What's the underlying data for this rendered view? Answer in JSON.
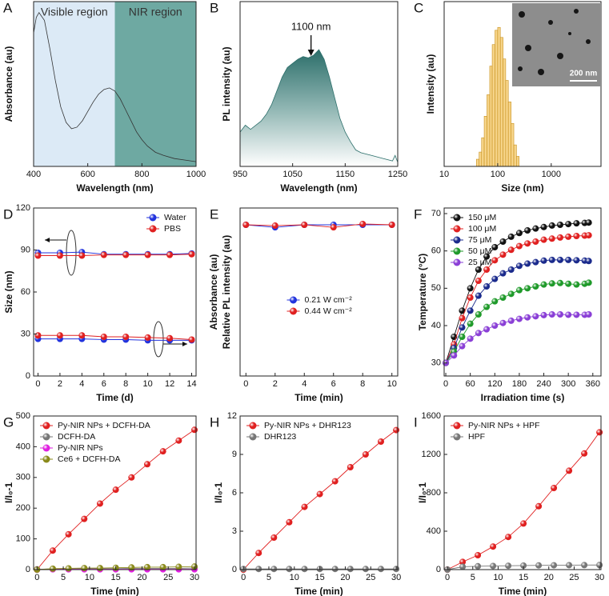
{
  "chart_data": [
    {
      "type": "line",
      "label": "A",
      "xlabel": "Wavelength (nm)",
      "ylabel": "Absorbance (au)",
      "xlim": [
        400,
        1000
      ],
      "ylim": [
        0,
        1.05
      ],
      "xticks": [
        400,
        600,
        800,
        1000
      ],
      "regions": [
        {
          "label": "Visible region",
          "from": 400,
          "to": 700,
          "color": "#dceaf6"
        },
        {
          "label": "NIR region",
          "from": 700,
          "to": 1000,
          "color": "#6ea9a2"
        }
      ],
      "x": [
        400,
        410,
        420,
        440,
        460,
        480,
        500,
        520,
        540,
        560,
        580,
        600,
        620,
        640,
        660,
        680,
        700,
        720,
        740,
        760,
        780,
        800,
        820,
        850,
        880,
        920,
        960,
        1000
      ],
      "series": [
        {
          "color": "#333333",
          "values": [
            0.85,
            0.95,
            0.98,
            0.93,
            0.75,
            0.55,
            0.38,
            0.28,
            0.24,
            0.25,
            0.29,
            0.35,
            0.41,
            0.46,
            0.49,
            0.5,
            0.48,
            0.43,
            0.36,
            0.29,
            0.22,
            0.17,
            0.13,
            0.09,
            0.07,
            0.05,
            0.04,
            0.03
          ]
        }
      ]
    },
    {
      "type": "area",
      "label": "B",
      "xlabel": "Wavelength (nm)",
      "ylabel": "PL intensity (au)",
      "xlim": [
        950,
        1250
      ],
      "ylim": [
        0,
        1.2
      ],
      "xticks": [
        950,
        1050,
        1150,
        1250
      ],
      "annotation": {
        "text": "1100 nm",
        "x": 1085
      },
      "x": [
        950,
        960,
        970,
        990,
        1000,
        1010,
        1020,
        1030,
        1040,
        1050,
        1060,
        1070,
        1080,
        1090,
        1100,
        1110,
        1120,
        1130,
        1140,
        1150,
        1160,
        1170,
        1180,
        1200,
        1220,
        1240,
        1245,
        1250
      ],
      "series": [
        {
          "color": "#2b6e6a",
          "values": [
            0.25,
            0.3,
            0.27,
            0.33,
            0.38,
            0.45,
            0.55,
            0.65,
            0.72,
            0.75,
            0.78,
            0.8,
            0.79,
            0.81,
            0.85,
            0.78,
            0.65,
            0.5,
            0.35,
            0.25,
            0.18,
            0.12,
            0.1,
            0.08,
            0.06,
            0.04,
            0.08,
            0.03
          ]
        }
      ]
    },
    {
      "type": "histogram",
      "label": "C",
      "xlabel": "Size (nm)",
      "ylabel": "Intensity (au)",
      "xscale": "log",
      "xlim": [
        10,
        8500
      ],
      "ylim": [
        0,
        1.15
      ],
      "xticks": [
        10,
        100,
        1000
      ],
      "color": "#f6d489",
      "inset": {
        "scale_label": "200 nm"
      },
      "bins": [
        40,
        45,
        50,
        56,
        63,
        71,
        79,
        89,
        100,
        112,
        126,
        141,
        158,
        178,
        200,
        224,
        251
      ],
      "values": [
        0.05,
        0.1,
        0.2,
        0.35,
        0.5,
        0.7,
        0.85,
        0.95,
        0.97,
        0.9,
        0.75,
        0.6,
        0.45,
        0.3,
        0.15,
        0.07
      ]
    },
    {
      "type": "line",
      "markers": true,
      "label": "D",
      "xlabel": "Time (d)",
      "ylabel": "Size (nm)",
      "xlim": [
        -0.4,
        14.4
      ],
      "ylim": [
        0,
        120
      ],
      "xticks": [
        0,
        2,
        4,
        6,
        8,
        10,
        12,
        14
      ],
      "yticks": [
        0,
        30,
        60,
        90,
        120
      ],
      "legend": "upper right",
      "x": [
        0,
        2,
        4,
        6,
        8,
        10,
        12,
        14
      ],
      "series": [
        {
          "name": "Water",
          "color": "#2233dd",
          "values": [
            88,
            88,
            88.5,
            87,
            87,
            87,
            87,
            87.5
          ],
          "values_lower": [
            26.5,
            26.5,
            26.5,
            26,
            26,
            25.5,
            25.5,
            25.5
          ]
        },
        {
          "name": "PBS",
          "color": "#e02020",
          "values": [
            86,
            86,
            86,
            86.5,
            86.5,
            86.5,
            86.5,
            87
          ],
          "values_lower": [
            29,
            29,
            29,
            28,
            28,
            27.5,
            27,
            26
          ]
        }
      ]
    },
    {
      "type": "line",
      "markers": true,
      "label": "E",
      "xlabel": "Time (min)",
      "ylabel": [
        "Absorbance (au)",
        "Relative PL intensity (au)"
      ],
      "xlim": [
        -0.4,
        10.4
      ],
      "ylim": [
        0,
        1
      ],
      "xticks": [
        0,
        2,
        4,
        6,
        8,
        10
      ],
      "legend": "center",
      "x": [
        0,
        2,
        4,
        6,
        8,
        10
      ],
      "series": [
        {
          "name": "0.21 W cm⁻²",
          "color": "#2233dd",
          "values": [
            0.9,
            0.885,
            0.9,
            0.9,
            0.9,
            0.9
          ]
        },
        {
          "name": "0.44 W cm⁻²",
          "color": "#e02020",
          "values": [
            0.9,
            0.895,
            0.9,
            0.885,
            0.905,
            0.9
          ]
        }
      ]
    },
    {
      "type": "line",
      "markers": true,
      "label": "F",
      "xlabel": "Irradiation time (s)",
      "ylabel": "Temperature (°C)",
      "xlim": [
        -4,
        380
      ],
      "ylim": [
        26.5,
        71.5
      ],
      "xticks": [
        0,
        60,
        120,
        180,
        240,
        300,
        360
      ],
      "yticks": [
        30,
        40,
        50,
        60,
        70
      ],
      "legend": "upper left",
      "x": [
        0,
        20,
        40,
        60,
        80,
        100,
        120,
        140,
        160,
        180,
        200,
        220,
        240,
        260,
        280,
        300,
        320,
        340,
        350
      ],
      "series": [
        {
          "name": "150 μM",
          "color": "#111111",
          "values": [
            30,
            37,
            44,
            50,
            55,
            58.5,
            61,
            62.5,
            63.8,
            64.8,
            65.5,
            66,
            66.4,
            66.8,
            67,
            67.2,
            67.4,
            67.5,
            67.6
          ]
        },
        {
          "name": "100 μM",
          "color": "#e02020",
          "values": [
            30,
            35,
            42,
            47.5,
            52,
            55,
            57.5,
            59,
            60.3,
            61.3,
            62,
            62.5,
            63,
            63.3,
            63.6,
            63.8,
            64,
            64.1,
            64.2
          ]
        },
        {
          "name": "75 μM",
          "color": "#1a2a8c",
          "values": [
            30,
            34,
            39.5,
            44,
            48,
            50.5,
            52.5,
            54,
            55,
            56,
            56.6,
            57,
            57.4,
            57.6,
            57.6,
            57.6,
            57.5,
            57.4,
            57.3
          ]
        },
        {
          "name": "50 μM",
          "color": "#1f9a2a",
          "values": [
            30,
            33,
            37,
            40.5,
            43,
            45,
            46.5,
            47.5,
            48.5,
            49.5,
            50,
            50.5,
            51,
            51.3,
            51.4,
            51.2,
            51,
            51.2,
            51.5
          ]
        },
        {
          "name": "25 μM",
          "color": "#8a3fd6",
          "values": [
            30,
            32,
            34.5,
            36.5,
            38,
            39,
            40,
            40.7,
            41.3,
            41.8,
            42.2,
            42.5,
            42.8,
            43,
            43,
            42.9,
            42.9,
            42.9,
            43
          ]
        }
      ]
    },
    {
      "type": "line",
      "markers": true,
      "label": "G",
      "xlabel": "Time (min)",
      "ylabel": "I/I₀-1",
      "xlim": [
        -0.65,
        30.3
      ],
      "ylim": [
        0,
        500
      ],
      "xticks": [
        0,
        5,
        10,
        15,
        20,
        25,
        30
      ],
      "yticks": [
        0,
        100,
        200,
        300,
        400,
        500
      ],
      "legend": "upper left",
      "x": [
        0,
        3,
        6,
        9,
        12,
        15,
        18,
        21,
        24,
        27,
        30
      ],
      "series": [
        {
          "name": "Py-NIR NPs + DCFH-DA",
          "color": "#e02020",
          "values": [
            0,
            62,
            115,
            165,
            215,
            260,
            300,
            343,
            385,
            420,
            455
          ]
        },
        {
          "name": "DCFH-DA",
          "color": "#777777",
          "values": [
            1,
            2,
            2,
            3,
            3,
            3,
            4,
            4,
            4,
            4,
            5
          ]
        },
        {
          "name": "Py-NIR NPs",
          "color": "#e020e0",
          "values": [
            0,
            1,
            1,
            1,
            1,
            1,
            1,
            1,
            1,
            1,
            1
          ]
        },
        {
          "name": "Ce6 + DCFH-DA",
          "color": "#8a8a1a",
          "values": [
            0,
            3,
            4,
            5,
            5,
            6,
            7,
            8,
            8,
            9,
            10
          ]
        }
      ]
    },
    {
      "type": "line",
      "markers": true,
      "label": "H",
      "xlabel": "Time (min)",
      "ylabel": "I/I₀-1",
      "xlim": [
        -0.65,
        30.3
      ],
      "ylim": [
        0,
        12
      ],
      "xticks": [
        0,
        5,
        10,
        15,
        20,
        25,
        30
      ],
      "yticks": [
        0,
        3,
        6,
        9,
        12
      ],
      "legend": "upper left",
      "x": [
        0,
        3,
        6,
        9,
        12,
        15,
        18,
        21,
        24,
        27,
        30
      ],
      "series": [
        {
          "name": "Py-NIR NPs + DHR123",
          "color": "#e02020",
          "values": [
            0,
            1.3,
            2.5,
            3.7,
            4.9,
            5.9,
            6.9,
            8.0,
            9.0,
            10.0,
            10.9
          ]
        },
        {
          "name": "DHR123",
          "color": "#777777",
          "values": [
            0.05,
            0.05,
            0.05,
            0.05,
            0.05,
            0.05,
            0.05,
            0.05,
            0.05,
            0.05,
            0.05
          ]
        }
      ]
    },
    {
      "type": "line",
      "markers": true,
      "label": "I",
      "xlabel": "Time (min)",
      "ylabel": "I/I₀-1",
      "xlim": [
        -0.65,
        30.3
      ],
      "ylim": [
        0,
        1600
      ],
      "xticks": [
        0,
        5,
        10,
        15,
        20,
        25,
        30
      ],
      "yticks": [
        0,
        400,
        800,
        1200,
        1600
      ],
      "legend": "upper left",
      "x": [
        0,
        3,
        6,
        9,
        12,
        15,
        18,
        21,
        24,
        27,
        30
      ],
      "series": [
        {
          "name": "Py-NIR NPs + HPF",
          "color": "#e02020",
          "values": [
            0,
            80,
            150,
            240,
            340,
            480,
            660,
            850,
            1030,
            1210,
            1430
          ]
        },
        {
          "name": "HPF",
          "color": "#777777",
          "values": [
            0,
            30,
            35,
            38,
            40,
            42,
            44,
            45,
            46,
            47,
            48
          ]
        }
      ]
    }
  ]
}
